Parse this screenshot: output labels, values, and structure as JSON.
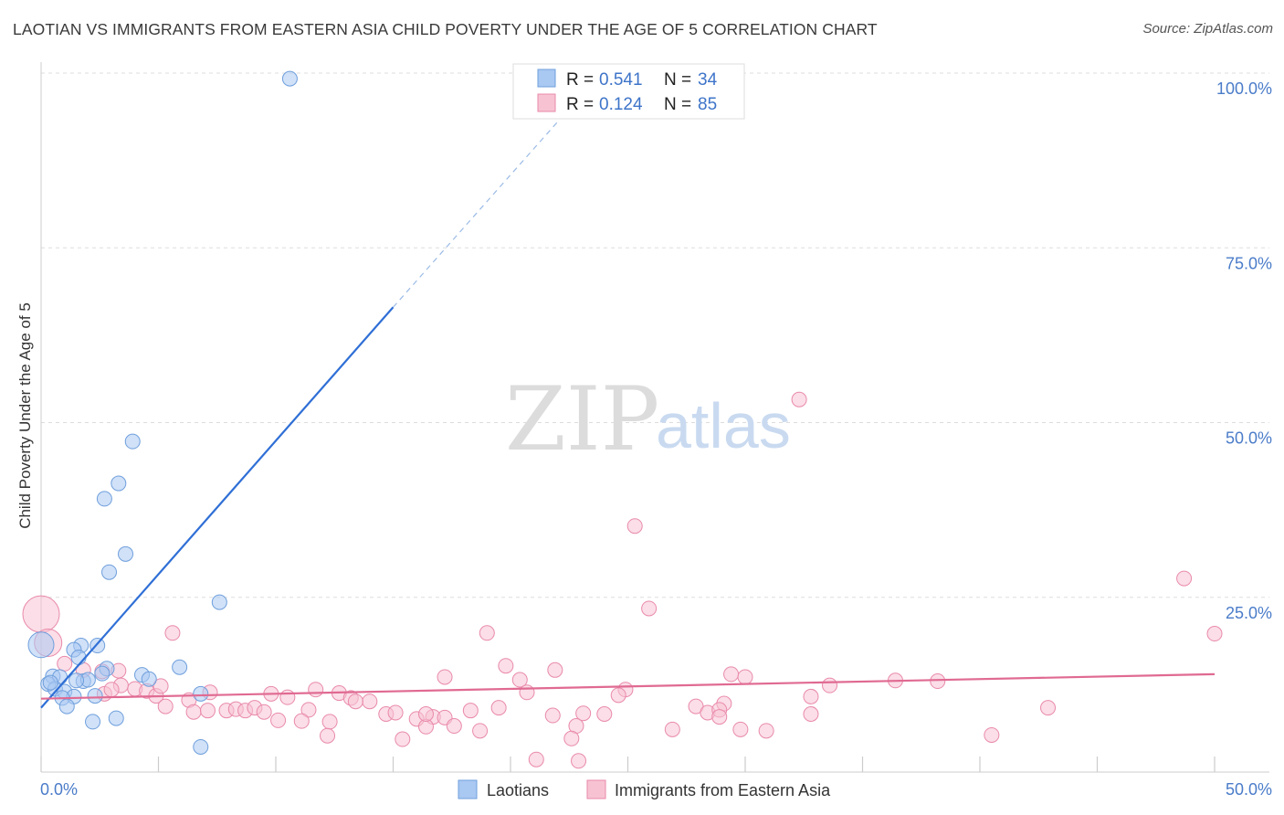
{
  "header": {
    "title": "LAOTIAN VS IMMIGRANTS FROM EASTERN ASIA CHILD POVERTY UNDER THE AGE OF 5 CORRELATION CHART",
    "source": "Source: ZipAtlas.com"
  },
  "watermark": {
    "zip": "ZIP",
    "atlas": "atlas"
  },
  "legend": {
    "r_label": "R =",
    "n_label": "N =",
    "series": [
      {
        "r": "0.541",
        "n": "34",
        "color": "#a9c8f2",
        "stroke": "#6f9fdc"
      },
      {
        "r": "0.124",
        "n": "85",
        "color": "#f7c3d3",
        "stroke": "#e98aaa"
      }
    ]
  },
  "bottom_legend": [
    {
      "label": "Laotians",
      "color": "#a9c8f2",
      "stroke": "#6f9fdc"
    },
    {
      "label": "Immigrants from Eastern Asia",
      "color": "#f7c3d3",
      "stroke": "#e98aaa"
    }
  ],
  "chart_data": {
    "type": "scatter",
    "title": "LAOTIAN VS IMMIGRANTS FROM EASTERN ASIA CHILD POVERTY UNDER THE AGE OF 5 CORRELATION CHART",
    "xlabel": "",
    "ylabel": "Child Poverty Under the Age of 5",
    "xlim": [
      0,
      50
    ],
    "ylim": [
      0,
      100
    ],
    "x_tick_labels": [
      "0.0%",
      "50.0%"
    ],
    "y_tick_labels": [
      "25.0%",
      "50.0%",
      "75.0%",
      "100.0%"
    ],
    "y_ticks": [
      25,
      50,
      75,
      100
    ],
    "grid": true,
    "legend_position": "top-center",
    "series": [
      {
        "name": "Laotians",
        "color": "#6f9fdc",
        "fill": "#a9c8f2",
        "trend": {
          "x": [
            0,
            15
          ],
          "y": [
            9.2,
            66.5
          ],
          "dashed_to": [
            22,
            93
          ]
        },
        "points": [
          [
            10.6,
            99.2
          ],
          [
            3.9,
            47.3
          ],
          [
            3.3,
            41.3
          ],
          [
            2.7,
            39.1
          ],
          [
            3.6,
            31.2
          ],
          [
            2.9,
            28.6
          ],
          [
            7.6,
            24.3
          ],
          [
            0.0,
            18.2
          ],
          [
            1.7,
            18.1
          ],
          [
            2.4,
            18.1
          ],
          [
            1.4,
            17.5
          ],
          [
            1.6,
            16.4
          ],
          [
            0.5,
            13.7
          ],
          [
            0.8,
            13.6
          ],
          [
            2.8,
            14.8
          ],
          [
            5.9,
            15.0
          ],
          [
            0.3,
            12.6
          ],
          [
            1.8,
            13.0
          ],
          [
            2.0,
            13.2
          ],
          [
            2.6,
            14.1
          ],
          [
            4.3,
            13.9
          ],
          [
            4.6,
            13.3
          ],
          [
            0.6,
            11.9
          ],
          [
            1.0,
            11.5
          ],
          [
            1.4,
            10.8
          ],
          [
            2.3,
            10.9
          ],
          [
            6.8,
            11.2
          ],
          [
            0.9,
            10.6
          ],
          [
            1.1,
            9.4
          ],
          [
            2.2,
            7.2
          ],
          [
            3.2,
            7.7
          ],
          [
            6.8,
            3.6
          ],
          [
            0.4,
            12.8
          ],
          [
            1.5,
            13.1
          ]
        ]
      },
      {
        "name": "Immigrants from Eastern Asia",
        "color": "#e98aaa",
        "fill": "#f7c3d3",
        "trend": {
          "x": [
            0,
            50
          ],
          "y": [
            10.5,
            14.0
          ]
        },
        "points": [
          [
            0.0,
            22.6
          ],
          [
            0.3,
            18.5
          ],
          [
            32.3,
            53.3
          ],
          [
            25.3,
            35.2
          ],
          [
            48.7,
            27.7
          ],
          [
            25.9,
            23.4
          ],
          [
            5.6,
            19.9
          ],
          [
            19.0,
            19.9
          ],
          [
            50.0,
            19.8
          ],
          [
            1.0,
            15.5
          ],
          [
            1.8,
            14.6
          ],
          [
            2.6,
            14.4
          ],
          [
            3.3,
            14.5
          ],
          [
            17.2,
            13.6
          ],
          [
            19.8,
            15.2
          ],
          [
            20.4,
            13.2
          ],
          [
            21.9,
            14.6
          ],
          [
            29.4,
            14.0
          ],
          [
            30.0,
            13.6
          ],
          [
            33.6,
            12.4
          ],
          [
            36.4,
            13.1
          ],
          [
            38.2,
            13.0
          ],
          [
            3.4,
            12.4
          ],
          [
            4.0,
            11.9
          ],
          [
            4.5,
            11.6
          ],
          [
            7.2,
            11.4
          ],
          [
            9.8,
            11.2
          ],
          [
            11.7,
            11.8
          ],
          [
            12.7,
            11.3
          ],
          [
            24.9,
            11.8
          ],
          [
            20.7,
            11.4
          ],
          [
            24.6,
            11.0
          ],
          [
            2.7,
            11.2
          ],
          [
            4.9,
            10.9
          ],
          [
            6.3,
            10.3
          ],
          [
            10.5,
            10.7
          ],
          [
            13.2,
            10.6
          ],
          [
            14.0,
            10.1
          ],
          [
            29.1,
            9.8
          ],
          [
            32.8,
            10.8
          ],
          [
            5.3,
            9.4
          ],
          [
            6.5,
            8.6
          ],
          [
            7.1,
            8.8
          ],
          [
            7.9,
            8.8
          ],
          [
            8.3,
            9.0
          ],
          [
            8.7,
            8.8
          ],
          [
            9.1,
            9.2
          ],
          [
            9.5,
            8.6
          ],
          [
            11.4,
            8.9
          ],
          [
            13.4,
            10.1
          ],
          [
            14.7,
            8.3
          ],
          [
            18.3,
            8.8
          ],
          [
            19.5,
            9.2
          ],
          [
            21.8,
            8.1
          ],
          [
            24.0,
            8.3
          ],
          [
            27.9,
            9.4
          ],
          [
            28.4,
            8.5
          ],
          [
            28.9,
            8.9
          ],
          [
            42.9,
            9.2
          ],
          [
            10.1,
            7.4
          ],
          [
            11.1,
            7.3
          ],
          [
            12.3,
            7.2
          ],
          [
            16.0,
            7.6
          ],
          [
            16.7,
            7.9
          ],
          [
            17.2,
            7.8
          ],
          [
            16.4,
            6.5
          ],
          [
            17.6,
            6.6
          ],
          [
            18.7,
            5.9
          ],
          [
            22.8,
            6.6
          ],
          [
            28.9,
            7.9
          ],
          [
            26.9,
            6.1
          ],
          [
            29.8,
            6.1
          ],
          [
            30.9,
            5.9
          ],
          [
            32.8,
            8.3
          ],
          [
            12.2,
            5.2
          ],
          [
            15.4,
            4.7
          ],
          [
            22.6,
            4.8
          ],
          [
            40.5,
            5.3
          ],
          [
            21.1,
            1.8
          ],
          [
            22.9,
            1.6
          ],
          [
            16.4,
            8.3
          ],
          [
            15.1,
            8.5
          ],
          [
            5.1,
            12.3
          ],
          [
            23.1,
            8.4
          ],
          [
            3.0,
            11.8
          ]
        ]
      }
    ]
  }
}
